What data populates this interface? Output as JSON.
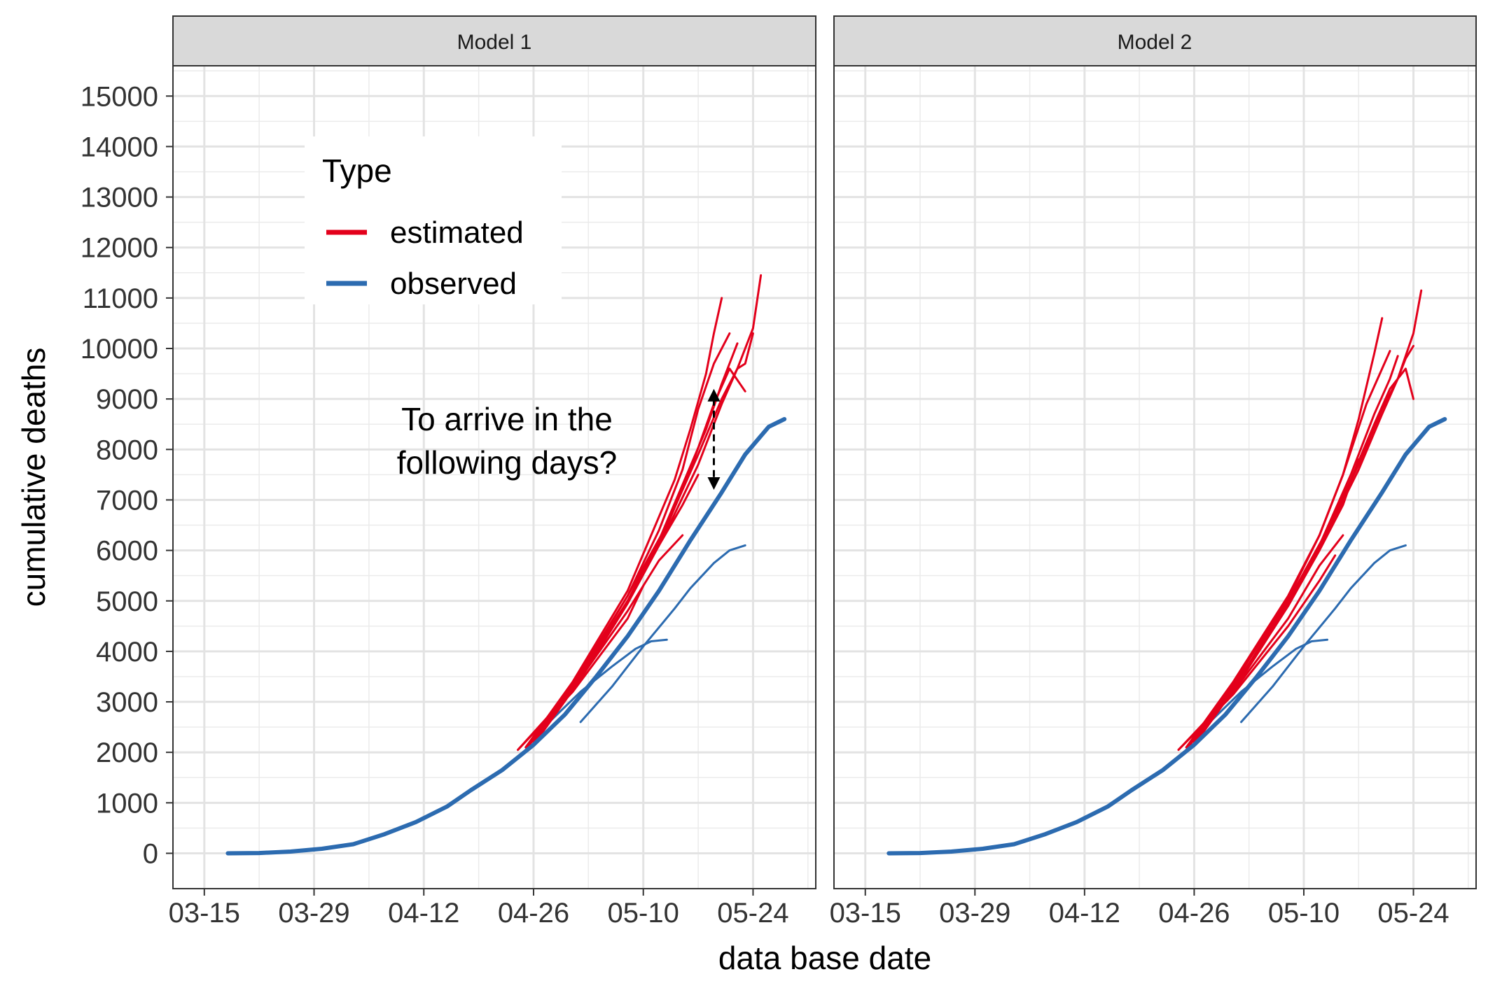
{
  "chart_data": {
    "type": "line",
    "xlabel": "data base date",
    "ylabel": "cumulative deaths",
    "x_ticks": [
      "03-15",
      "03-29",
      "04-12",
      "04-26",
      "05-10",
      "05-24"
    ],
    "y_ticks": [
      0,
      1000,
      2000,
      3000,
      4000,
      5000,
      6000,
      7000,
      8000,
      9000,
      10000,
      11000,
      12000,
      13000,
      14000,
      15000
    ],
    "ylim": [
      -700,
      15600
    ],
    "xlim": [
      "03-11",
      "06-01"
    ],
    "grid": true,
    "legend": {
      "title": "Type",
      "placement": "top-left inside first panel",
      "items": [
        {
          "label": "estimated",
          "color": "#E3001B"
        },
        {
          "label": "observed",
          "color": "#2C6BB0"
        }
      ]
    },
    "annotation": {
      "panel": "Model 1",
      "lines": [
        "To arrive in the",
        "following days?"
      ],
      "arrow_x": "05-19",
      "arrow_y": [
        9200,
        7200
      ]
    },
    "panels": [
      {
        "title": "Model 1",
        "observed": [
          {
            "name": "full",
            "points": [
              [
                "03-18",
                0
              ],
              [
                "03-22",
                5
              ],
              [
                "03-26",
                35
              ],
              [
                "03-30",
                90
              ],
              [
                "04-03",
                180
              ],
              [
                "04-07",
                380
              ],
              [
                "04-11",
                620
              ],
              [
                "04-15",
                930
              ],
              [
                "04-18",
                1250
              ],
              [
                "04-22",
                1650
              ],
              [
                "04-26",
                2150
              ],
              [
                "04-30",
                2750
              ],
              [
                "05-04",
                3500
              ],
              [
                "05-08",
                4300
              ],
              [
                "05-12",
                5200
              ],
              [
                "05-16",
                6200
              ],
              [
                "05-20",
                7150
              ],
              [
                "05-23",
                7900
              ],
              [
                "05-26",
                8450
              ],
              [
                "05-28",
                8600
              ]
            ]
          },
          {
            "name": "trunc-0518",
            "points": [
              [
                "05-02",
                2600
              ],
              [
                "05-06",
                3300
              ],
              [
                "05-10",
                4100
              ],
              [
                "05-14",
                4850
              ],
              [
                "05-16",
                5250
              ],
              [
                "05-19",
                5750
              ],
              [
                "05-21",
                6000
              ],
              [
                "05-23",
                6100
              ]
            ]
          },
          {
            "name": "trunc-0511",
            "points": [
              [
                "04-28",
                2600
              ],
              [
                "05-02",
                3200
              ],
              [
                "05-06",
                3700
              ],
              [
                "05-09",
                4050
              ],
              [
                "05-11",
                4200
              ],
              [
                "05-13",
                4230
              ]
            ]
          }
        ],
        "estimated": [
          {
            "name": "e1",
            "points": [
              [
                "04-24",
                2050
              ],
              [
                "05-01",
                3200
              ],
              [
                "05-08",
                4650
              ],
              [
                "05-10",
                5300
              ]
            ]
          },
          {
            "name": "e2",
            "points": [
              [
                "04-24",
                2050
              ],
              [
                "05-01",
                3250
              ],
              [
                "05-08",
                4800
              ],
              [
                "05-12",
                5800
              ],
              [
                "05-15",
                6300
              ]
            ]
          },
          {
            "name": "e3",
            "points": [
              [
                "04-25",
                2050
              ],
              [
                "05-01",
                3300
              ],
              [
                "05-08",
                5000
              ],
              [
                "05-12",
                6100
              ],
              [
                "05-15",
                6900
              ],
              [
                "05-17",
                7500
              ]
            ]
          },
          {
            "name": "e4",
            "points": [
              [
                "04-25",
                2100
              ],
              [
                "05-01",
                3400
              ],
              [
                "05-08",
                5200
              ],
              [
                "05-11",
                6300
              ],
              [
                "05-14",
                7400
              ],
              [
                "05-16",
                8400
              ],
              [
                "05-18",
                9500
              ],
              [
                "05-19",
                10300
              ],
              [
                "05-20",
                11000
              ]
            ]
          },
          {
            "name": "e5",
            "points": [
              [
                "04-25",
                2100
              ],
              [
                "05-01",
                3350
              ],
              [
                "05-08",
                5100
              ],
              [
                "05-12",
                6400
              ],
              [
                "05-15",
                7600
              ],
              [
                "05-17",
                8800
              ],
              [
                "05-19",
                9700
              ],
              [
                "05-21",
                10300
              ]
            ]
          },
          {
            "name": "e6",
            "points": [
              [
                "04-26",
                2150
              ],
              [
                "05-02",
                3500
              ],
              [
                "05-08",
                5000
              ],
              [
                "05-12",
                6200
              ],
              [
                "05-15",
                7300
              ],
              [
                "05-18",
                8400
              ],
              [
                "05-20",
                9300
              ],
              [
                "05-22",
                10100
              ]
            ]
          },
          {
            "name": "e7",
            "points": [
              [
                "04-26",
                2150
              ],
              [
                "05-02",
                3450
              ],
              [
                "05-08",
                4950
              ],
              [
                "05-12",
                6100
              ],
              [
                "05-16",
                7600
              ],
              [
                "05-19",
                8900
              ],
              [
                "05-21",
                9600
              ],
              [
                "05-23",
                9150
              ]
            ]
          },
          {
            "name": "e8",
            "points": [
              [
                "04-26",
                2200
              ],
              [
                "05-02",
                3550
              ],
              [
                "05-08",
                5100
              ],
              [
                "05-13",
                6500
              ],
              [
                "05-17",
                7900
              ],
              [
                "05-20",
                9000
              ],
              [
                "05-22",
                9600
              ],
              [
                "05-23",
                9700
              ],
              [
                "05-24",
                10300
              ]
            ]
          },
          {
            "name": "e9",
            "points": [
              [
                "04-26",
                2200
              ],
              [
                "05-02",
                3500
              ],
              [
                "05-08",
                5000
              ],
              [
                "05-13",
                6400
              ],
              [
                "05-17",
                7700
              ],
              [
                "05-20",
                8900
              ],
              [
                "05-22",
                9600
              ],
              [
                "05-24",
                10400
              ],
              [
                "05-25",
                11450
              ]
            ]
          }
        ]
      },
      {
        "title": "Model 2",
        "observed": [
          {
            "name": "full",
            "points": [
              [
                "03-18",
                0
              ],
              [
                "03-22",
                5
              ],
              [
                "03-26",
                35
              ],
              [
                "03-30",
                90
              ],
              [
                "04-03",
                180
              ],
              [
                "04-07",
                380
              ],
              [
                "04-11",
                620
              ],
              [
                "04-15",
                930
              ],
              [
                "04-18",
                1250
              ],
              [
                "04-22",
                1650
              ],
              [
                "04-26",
                2150
              ],
              [
                "04-30",
                2750
              ],
              [
                "05-04",
                3500
              ],
              [
                "05-08",
                4300
              ],
              [
                "05-12",
                5200
              ],
              [
                "05-16",
                6200
              ],
              [
                "05-20",
                7150
              ],
              [
                "05-23",
                7900
              ],
              [
                "05-26",
                8450
              ],
              [
                "05-28",
                8600
              ]
            ]
          },
          {
            "name": "trunc-0518",
            "points": [
              [
                "05-02",
                2600
              ],
              [
                "05-06",
                3300
              ],
              [
                "05-10",
                4100
              ],
              [
                "05-14",
                4850
              ],
              [
                "05-16",
                5250
              ],
              [
                "05-19",
                5750
              ],
              [
                "05-21",
                6000
              ],
              [
                "05-23",
                6100
              ]
            ]
          },
          {
            "name": "trunc-0511",
            "points": [
              [
                "04-28",
                2600
              ],
              [
                "05-02",
                3200
              ],
              [
                "05-06",
                3700
              ],
              [
                "05-09",
                4050
              ],
              [
                "05-11",
                4200
              ],
              [
                "05-13",
                4230
              ]
            ]
          }
        ],
        "estimated": [
          {
            "name": "e1",
            "points": [
              [
                "04-24",
                2050
              ],
              [
                "05-01",
                3150
              ],
              [
                "05-08",
                4500
              ],
              [
                "05-12",
                5400
              ],
              [
                "05-14",
                5900
              ]
            ]
          },
          {
            "name": "e2",
            "points": [
              [
                "04-24",
                2050
              ],
              [
                "05-01",
                3200
              ],
              [
                "05-08",
                4650
              ],
              [
                "05-12",
                5700
              ],
              [
                "05-15",
                6300
              ]
            ]
          },
          {
            "name": "e3",
            "points": [
              [
                "04-25",
                2050
              ],
              [
                "05-01",
                3300
              ],
              [
                "05-08",
                4900
              ],
              [
                "05-12",
                6000
              ],
              [
                "05-15",
                6900
              ],
              [
                "05-17",
                7800
              ]
            ]
          },
          {
            "name": "e4",
            "points": [
              [
                "04-25",
                2100
              ],
              [
                "05-01",
                3400
              ],
              [
                "05-08",
                5100
              ],
              [
                "05-12",
                6300
              ],
              [
                "05-15",
                7500
              ],
              [
                "05-17",
                8600
              ],
              [
                "05-19",
                9900
              ],
              [
                "05-20",
                10600
              ]
            ]
          },
          {
            "name": "e5",
            "points": [
              [
                "04-25",
                2100
              ],
              [
                "05-01",
                3350
              ],
              [
                "05-08",
                5050
              ],
              [
                "05-12",
                6300
              ],
              [
                "05-15",
                7500
              ],
              [
                "05-18",
                8900
              ],
              [
                "05-20",
                9600
              ],
              [
                "05-21",
                9950
              ]
            ]
          },
          {
            "name": "e6",
            "points": [
              [
                "04-26",
                2150
              ],
              [
                "05-02",
                3450
              ],
              [
                "05-08",
                4950
              ],
              [
                "05-12",
                6100
              ],
              [
                "05-16",
                7500
              ],
              [
                "05-19",
                8700
              ],
              [
                "05-21",
                9400
              ],
              [
                "05-22",
                9850
              ]
            ]
          },
          {
            "name": "e7",
            "points": [
              [
                "04-26",
                2150
              ],
              [
                "05-02",
                3450
              ],
              [
                "05-08",
                4900
              ],
              [
                "05-12",
                6050
              ],
              [
                "05-16",
                7400
              ],
              [
                "05-19",
                8500
              ],
              [
                "05-21",
                9200
              ],
              [
                "05-23",
                9600
              ],
              [
                "05-24",
                9000
              ]
            ]
          },
          {
            "name": "e8",
            "points": [
              [
                "04-26",
                2200
              ],
              [
                "05-02",
                3500
              ],
              [
                "05-08",
                5000
              ],
              [
                "05-13",
                6400
              ],
              [
                "05-17",
                7700
              ],
              [
                "05-20",
                8800
              ],
              [
                "05-22",
                9400
              ],
              [
                "05-23",
                9800
              ],
              [
                "05-24",
                10050
              ]
            ]
          },
          {
            "name": "e9",
            "points": [
              [
                "04-26",
                2200
              ],
              [
                "05-02",
                3500
              ],
              [
                "05-08",
                5000
              ],
              [
                "05-13",
                6350
              ],
              [
                "05-17",
                7600
              ],
              [
                "05-20",
                8700
              ],
              [
                "05-22",
                9400
              ],
              [
                "05-24",
                10300
              ],
              [
                "05-25",
                11150
              ]
            ]
          }
        ]
      }
    ]
  }
}
